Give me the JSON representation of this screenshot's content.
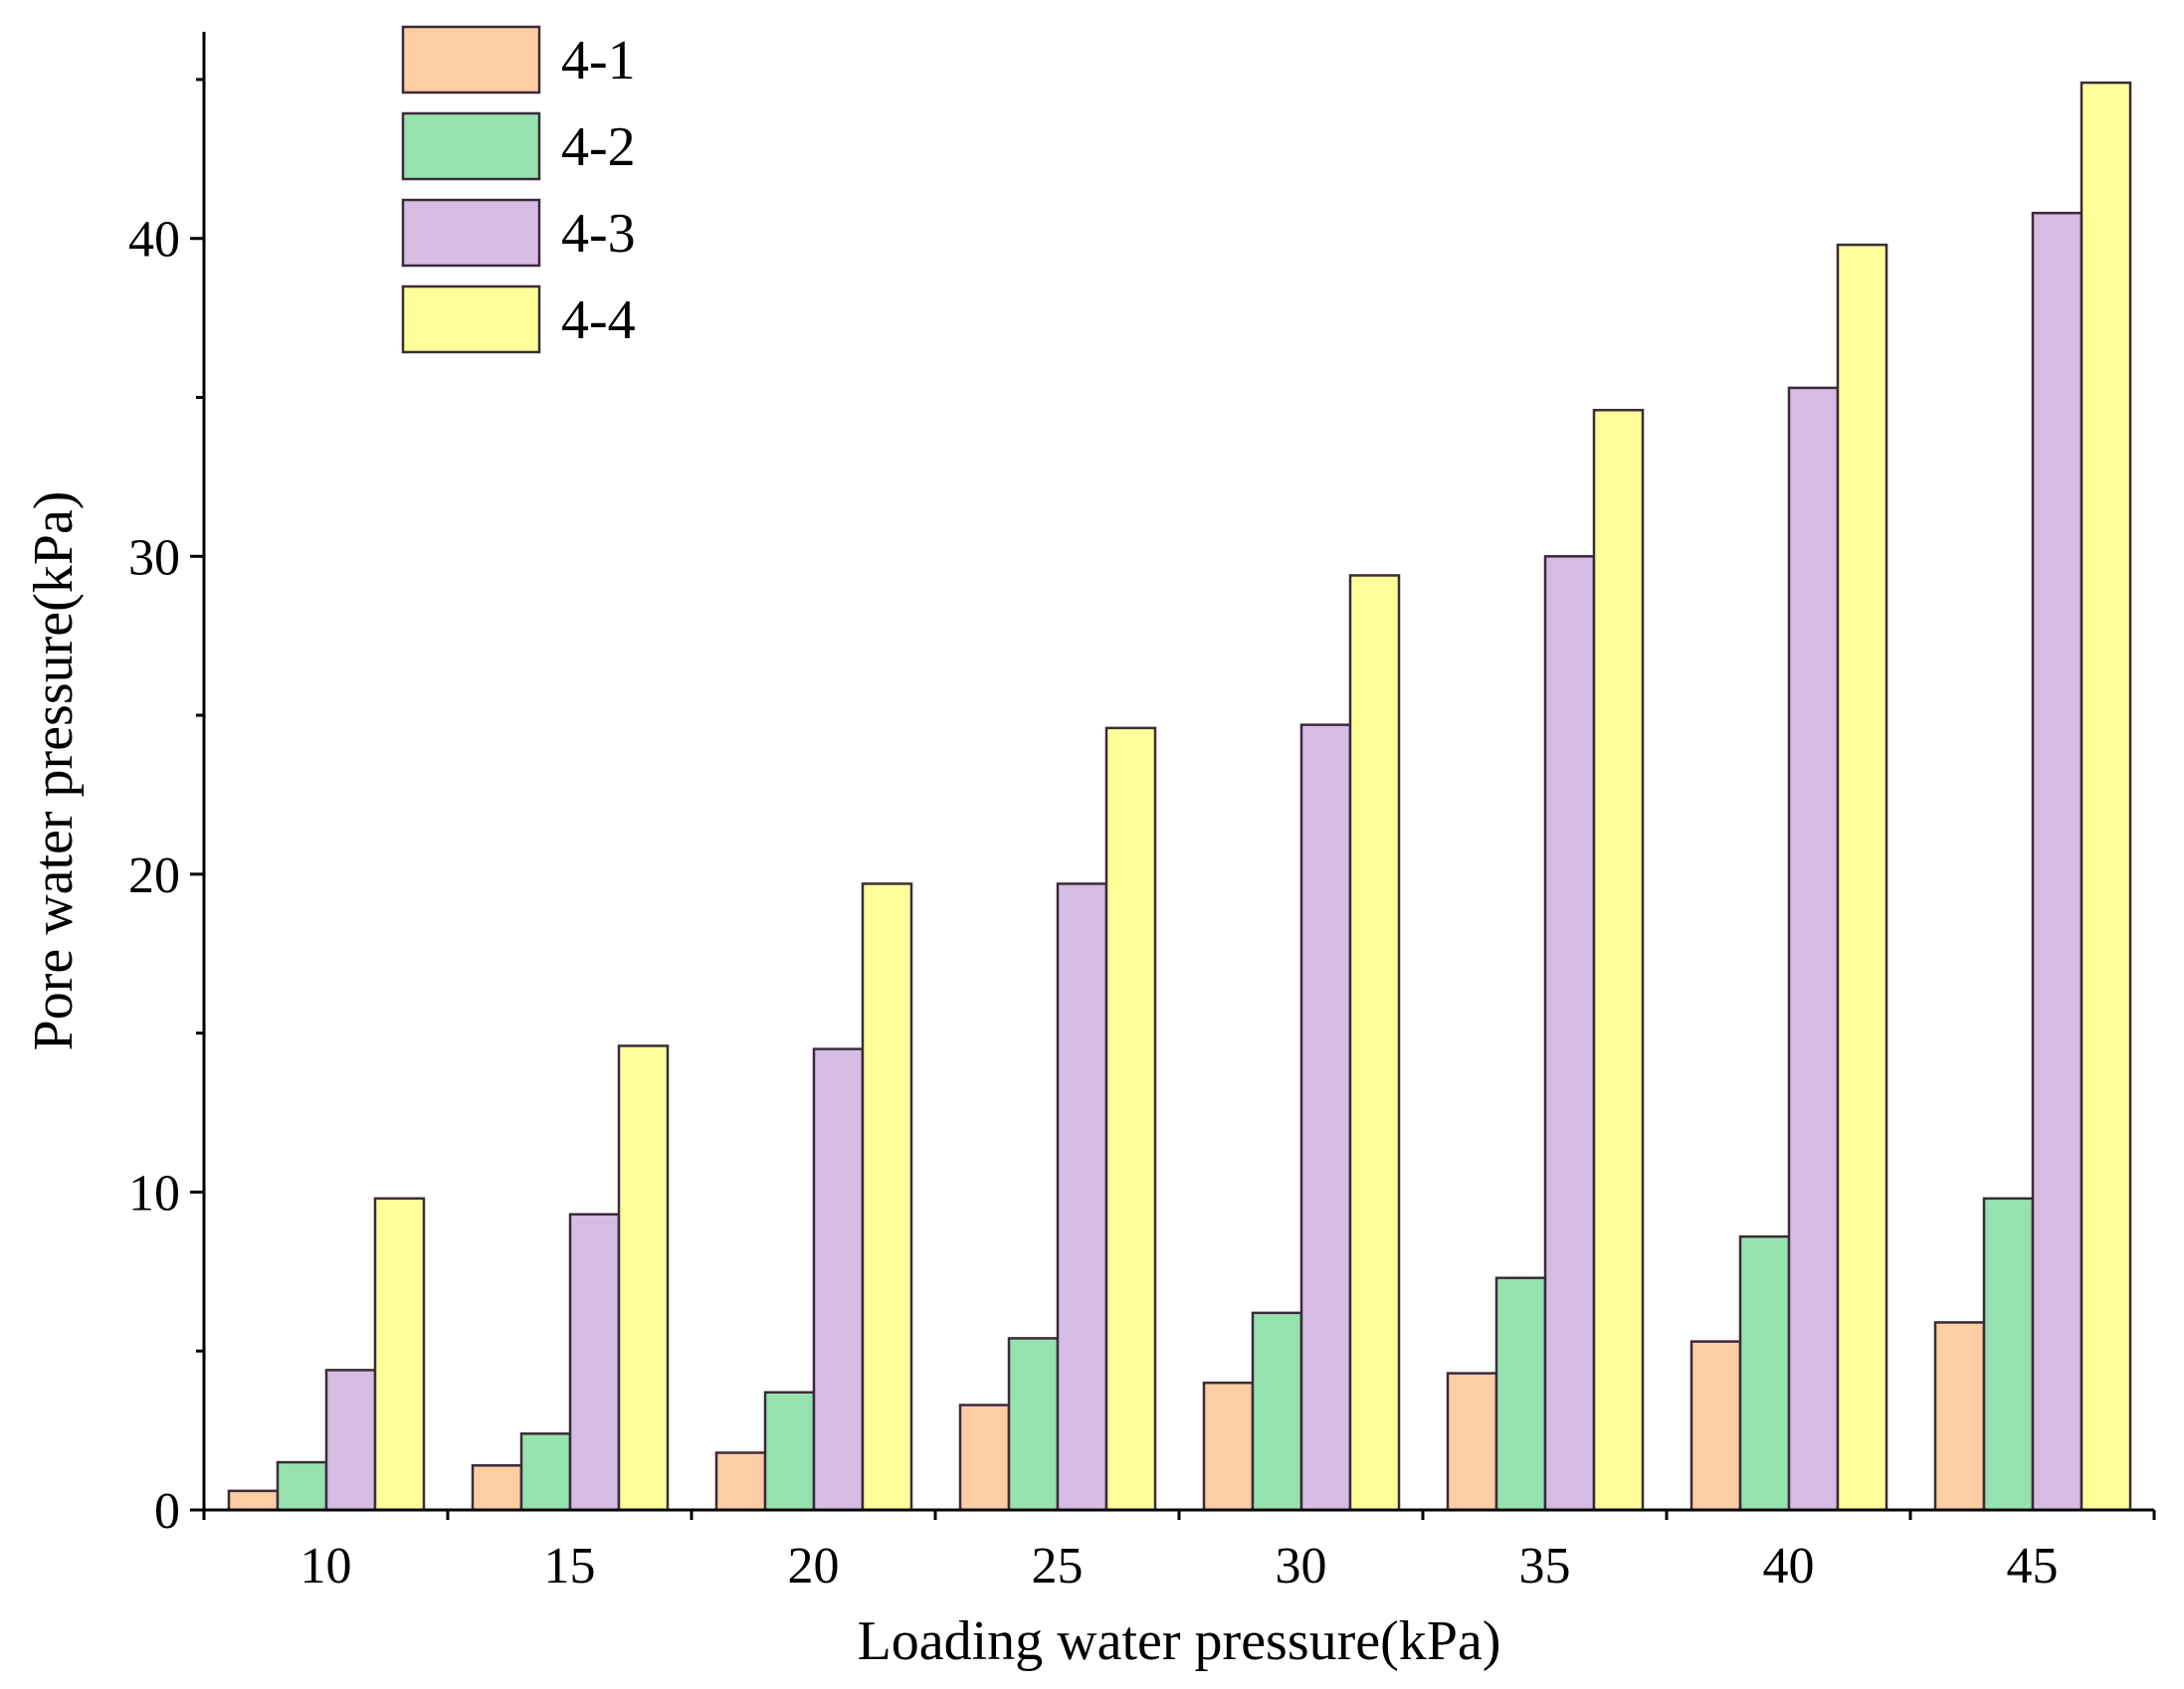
{
  "chart_data": {
    "type": "bar",
    "xlabel": "Loading water pressure(kPa)",
    "ylabel": "Pore water pressure(kPa)",
    "categories": [
      "10",
      "15",
      "20",
      "25",
      "30",
      "35",
      "40",
      "45"
    ],
    "ylim": [
      0,
      46.5
    ],
    "yticks": [
      0,
      10,
      20,
      30,
      40
    ],
    "legend_position": "top-left",
    "grid": false,
    "series": [
      {
        "name": "4-1",
        "color": "#FDCDA4",
        "values": [
          0.6,
          1.4,
          1.8,
          3.3,
          4.0,
          4.3,
          5.3,
          5.9
        ]
      },
      {
        "name": "4-2",
        "color": "#96E2AE",
        "values": [
          1.5,
          2.4,
          3.7,
          5.4,
          6.2,
          7.3,
          8.6,
          9.8
        ]
      },
      {
        "name": "4-3",
        "color": "#D6BCE2",
        "values": [
          4.4,
          9.3,
          14.5,
          19.7,
          24.7,
          30.0,
          35.3,
          40.8
        ]
      },
      {
        "name": "4-4",
        "color": "#FFFF99",
        "values": [
          9.8,
          14.6,
          19.7,
          24.6,
          29.4,
          34.6,
          39.8,
          44.9
        ]
      }
    ]
  }
}
